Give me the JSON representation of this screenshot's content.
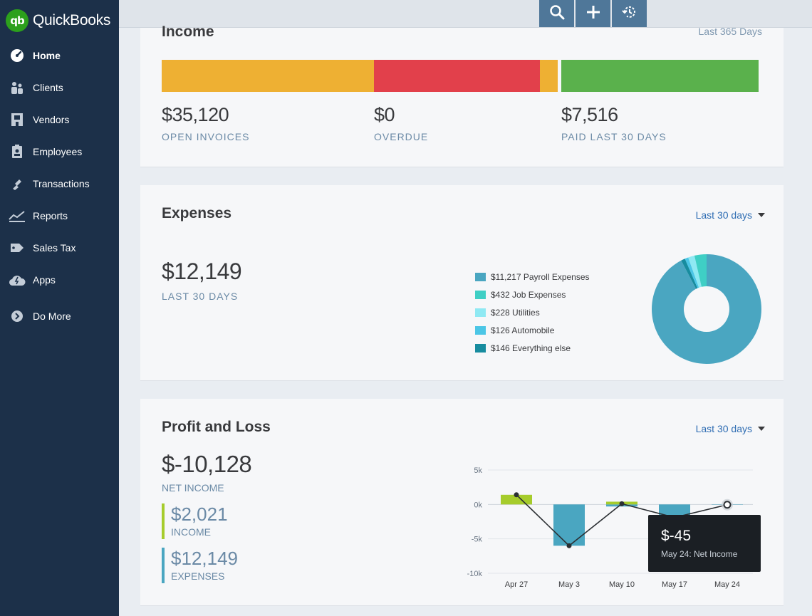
{
  "app": {
    "name": "QuickBooks",
    "logo_mark": "qb"
  },
  "sidebar": {
    "items": [
      {
        "label": "Home",
        "icon": "dashboard-icon",
        "active": true
      },
      {
        "label": "Clients",
        "icon": "clients-icon"
      },
      {
        "label": "Vendors",
        "icon": "vendors-icon"
      },
      {
        "label": "Employees",
        "icon": "employees-icon"
      },
      {
        "label": "Transactions",
        "icon": "transactions-icon"
      },
      {
        "label": "Reports",
        "icon": "reports-icon"
      },
      {
        "label": "Sales Tax",
        "icon": "sales-tax-icon"
      },
      {
        "label": "Apps",
        "icon": "apps-icon"
      },
      {
        "label": "Do More",
        "icon": "do-more-icon"
      }
    ]
  },
  "topbar": {
    "tools": [
      "search-icon",
      "plus-icon",
      "recent-icon"
    ]
  },
  "colors": {
    "sidebar": "#1c3049",
    "open_invoices": "#eeb033",
    "overdue": "#e2404b",
    "paid": "#5ab14c",
    "payroll": "#4aa6c1",
    "job": "#3fcfc5",
    "utilities": "#8fe9f3",
    "automobile": "#4bc6e6",
    "everything_else": "#178c9f",
    "income": "#a6cc2c",
    "expenses": "#4aa6c1"
  },
  "income": {
    "title": "Income",
    "range": "Last 365 Days",
    "open_invoices": {
      "value": "$35,120",
      "label": "OPEN INVOICES"
    },
    "overdue": {
      "value": "$0",
      "label": "OVERDUE"
    },
    "paid": {
      "value": "$7,516",
      "label": "PAID LAST 30 DAYS"
    }
  },
  "expenses": {
    "title": "Expenses",
    "range": "Last 30 days",
    "total": "$12,149",
    "total_label": "LAST 30 DAYS",
    "legend": [
      {
        "label": "$11,217 Payroll Expenses",
        "color": "#4aa6c1"
      },
      {
        "label": "$432 Job Expenses",
        "color": "#3fcfc5"
      },
      {
        "label": "$228 Utilities",
        "color": "#8fe9f3"
      },
      {
        "label": "$126 Automobile",
        "color": "#4bc6e6"
      },
      {
        "label": "$146 Everything else",
        "color": "#178c9f"
      }
    ]
  },
  "profit_loss": {
    "title": "Profit and Loss",
    "range": "Last 30 days",
    "net_income": "$-10,128",
    "net_income_label": "NET INCOME",
    "income": "$2,021",
    "income_label": "INCOME",
    "expenses": "$12,149",
    "expenses_label": "EXPENSES",
    "tooltip": {
      "value": "$-45",
      "label": "May 24: Net Income"
    }
  },
  "chart_data": [
    {
      "type": "bar",
      "title": "Income",
      "orientation": "horizontal-stacked",
      "categories": [
        "OPEN INVOICES",
        "OVERDUE",
        "PAID LAST 30 DAYS"
      ],
      "values": [
        35120,
        0,
        7516
      ]
    },
    {
      "type": "pie",
      "title": "Expenses",
      "donut": true,
      "categories": [
        "Payroll Expenses",
        "Job Expenses",
        "Utilities",
        "Automobile",
        "Everything else"
      ],
      "values": [
        11217,
        432,
        228,
        126,
        146
      ]
    },
    {
      "type": "bar",
      "title": "Profit and Loss",
      "categories": [
        "Apr 27",
        "May 3",
        "May 10",
        "May 17",
        "May 24"
      ],
      "yticks": [
        "5k",
        "0k",
        "-5k",
        "-10k"
      ],
      "ylim": [
        -10000,
        5000
      ],
      "series": [
        {
          "name": "Income",
          "values": [
            1400,
            0,
            400,
            0,
            0
          ]
        },
        {
          "name": "Expenses",
          "values": [
            0,
            -6000,
            -300,
            -1900,
            -45
          ]
        },
        {
          "name": "Net Income",
          "type": "line",
          "values": [
            1400,
            -6000,
            100,
            -1900,
            -45
          ]
        }
      ],
      "highlight": {
        "category": "May 24",
        "series": "Net Income",
        "value": -45
      }
    }
  ]
}
